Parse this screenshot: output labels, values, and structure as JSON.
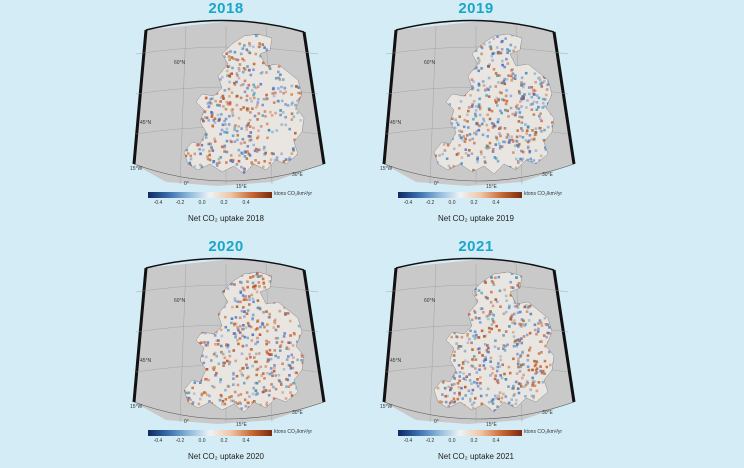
{
  "panels": [
    {
      "year": "2018",
      "caption": "Net CO₂ uptake 2018",
      "unit": "ktons CO₂/km²/yr",
      "ticks": [
        "-0.4",
        "-0.2",
        "0.0",
        "0.2",
        "0.4"
      ],
      "grat_labels": [
        "60°N",
        "45°N",
        "15°W",
        "0°",
        "15°E",
        "30°E"
      ]
    },
    {
      "year": "2019",
      "caption": "Net CO₂ uptake 2019",
      "unit": "ktons CO₂/km²/yr",
      "ticks": [
        "-0.4",
        "-0.2",
        "0.0",
        "0.2",
        "0.4"
      ],
      "grat_labels": [
        "60°N",
        "45°N",
        "15°W",
        "0°",
        "15°E",
        "30°E"
      ]
    },
    {
      "year": "2020",
      "caption": "Net CO₂ uptake 2020",
      "unit": "ktons CO₂/km²/yr",
      "ticks": [
        "-0.4",
        "-0.2",
        "0.0",
        "0.2",
        "0.4"
      ],
      "grat_labels": [
        "60°N",
        "45°N",
        "15°W",
        "0°",
        "15°E",
        "30°E"
      ]
    },
    {
      "year": "2021",
      "caption": "Net CO₂ uptake 2021",
      "unit": "ktons CO₂/km²/yr",
      "ticks": [
        "-0.4",
        "-0.2",
        "0.0",
        "0.2",
        "0.4"
      ],
      "grat_labels": [
        "60°N",
        "45°N",
        "15°W",
        "0°",
        "15°E",
        "30°E"
      ]
    }
  ],
  "colors": {
    "background": "#d4ecf5",
    "year_title": "#1aa6c8",
    "map_frame": "#cfcfcf",
    "source": "#2f66a8",
    "sink": "#b85a2a"
  }
}
